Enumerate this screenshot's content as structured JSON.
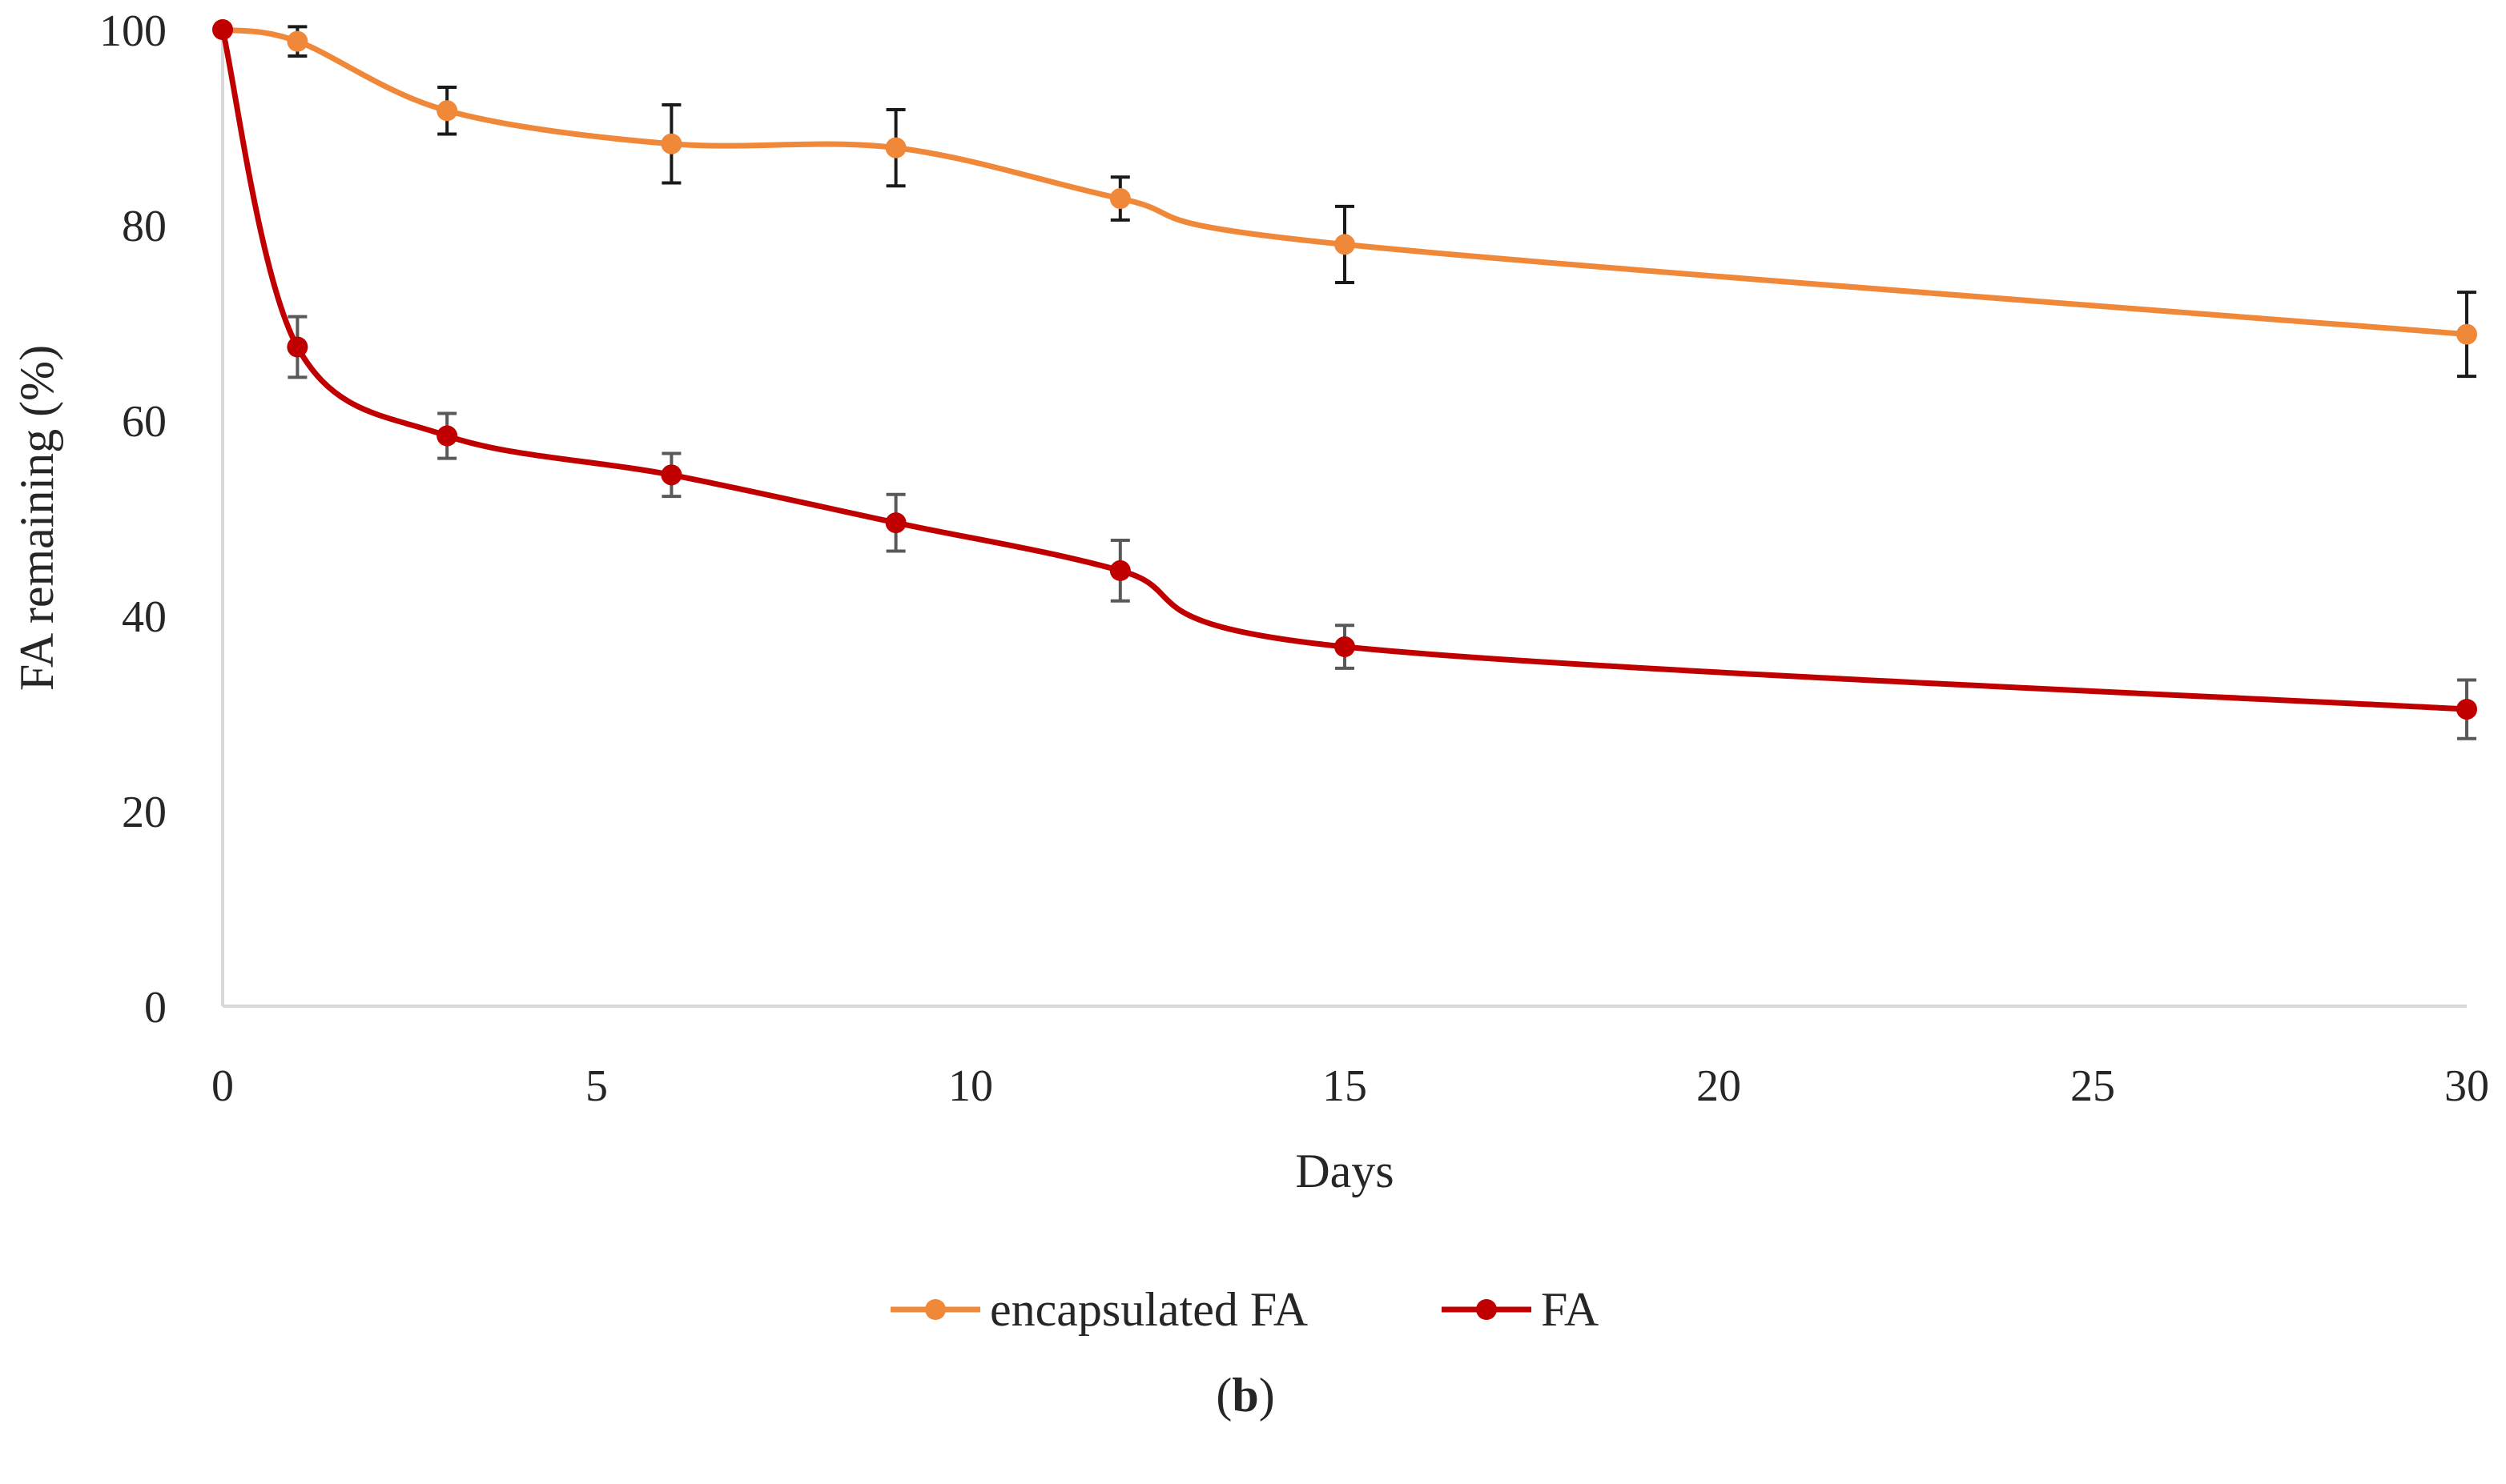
{
  "chart_data": {
    "type": "line",
    "title": "",
    "xlabel": "Days",
    "ylabel": "FA remaining (%)",
    "xlim": [
      0,
      30
    ],
    "ylim": [
      0,
      100
    ],
    "xticks": [
      0,
      5,
      10,
      15,
      20,
      25,
      30
    ],
    "yticks": [
      0,
      20,
      40,
      60,
      80,
      100
    ],
    "grid": false,
    "legend_position": "bottom",
    "series": [
      {
        "name": "encapsulated FA",
        "color": "#F0883A",
        "x": [
          0,
          1,
          3,
          6,
          9,
          12,
          15,
          30
        ],
        "y": [
          100,
          98.8,
          91.7,
          88.3,
          87.9,
          82.7,
          78.0,
          68.8
        ],
        "error": [
          0,
          1.5,
          2.4,
          4.0,
          3.9,
          2.2,
          3.9,
          4.3
        ]
      },
      {
        "name": "FA",
        "color": "#C00000",
        "x": [
          0,
          1,
          3,
          6,
          9,
          12,
          15,
          30
        ],
        "y": [
          100,
          67.5,
          58.4,
          54.4,
          49.5,
          44.6,
          36.8,
          30.4
        ],
        "error": [
          0,
          3.1,
          2.3,
          2.2,
          2.9,
          3.1,
          2.2,
          3.0
        ]
      }
    ]
  },
  "caption": {
    "open": "(",
    "label": "b",
    "close": ")"
  }
}
